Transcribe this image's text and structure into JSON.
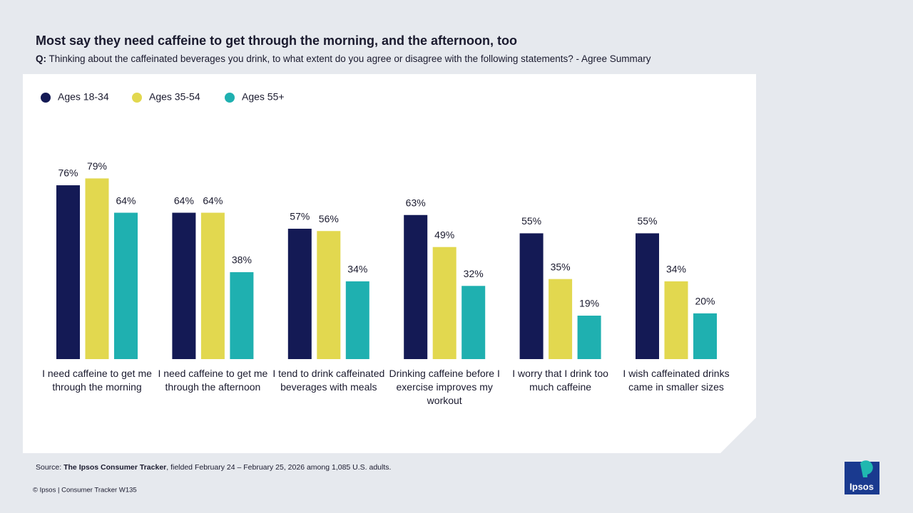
{
  "chart_data": {
    "type": "bar",
    "title": "Most say they need caffeine to get through the morning, and the afternoon, too",
    "question_label": "Q:",
    "question": "Thinking about the caffeinated beverages you drink, to what extent do you agree or disagree with the following statements? - Agree Summary",
    "categories": [
      "I need caffeine to get me through the morning",
      "I need caffeine to get me through the afternoon",
      "I tend to drink caffeinated beverages with meals",
      "Drinking caffeine before I exercise improves my workout",
      "I worry that I drink too much caffeine",
      "I wish caffeinated drinks came in smaller sizes"
    ],
    "series": [
      {
        "name": "Ages 18-34",
        "color": "#141a55",
        "values": [
          76,
          64,
          57,
          63,
          55,
          55
        ],
        "value_labels": [
          "76%",
          "64%",
          "57%",
          "63%",
          "55%",
          "55%"
        ]
      },
      {
        "name": "Ages 35-54",
        "color": "#e2d84f",
        "values": [
          79,
          64,
          56,
          49,
          35,
          34
        ],
        "value_labels": [
          "79%",
          "64%",
          "56%",
          "49%",
          "35%",
          "34%"
        ]
      },
      {
        "name": "Ages 55+",
        "color": "#1fb0b0",
        "values": [
          64,
          38,
          34,
          32,
          19,
          20
        ],
        "value_labels": [
          "64%",
          "38%",
          "34%",
          "32%",
          "19%",
          "20%"
        ]
      }
    ]
  },
  "footer": {
    "source_label": "Source:",
    "source_name": "The Ipsos Consumer Tracker",
    "source_text": ", fielded February 24 – February 25, 2026 among 1,085 U.S. adults.",
    "copyright": "© Ipsos | Consumer Tracker W135",
    "logo": "Ipsos"
  }
}
